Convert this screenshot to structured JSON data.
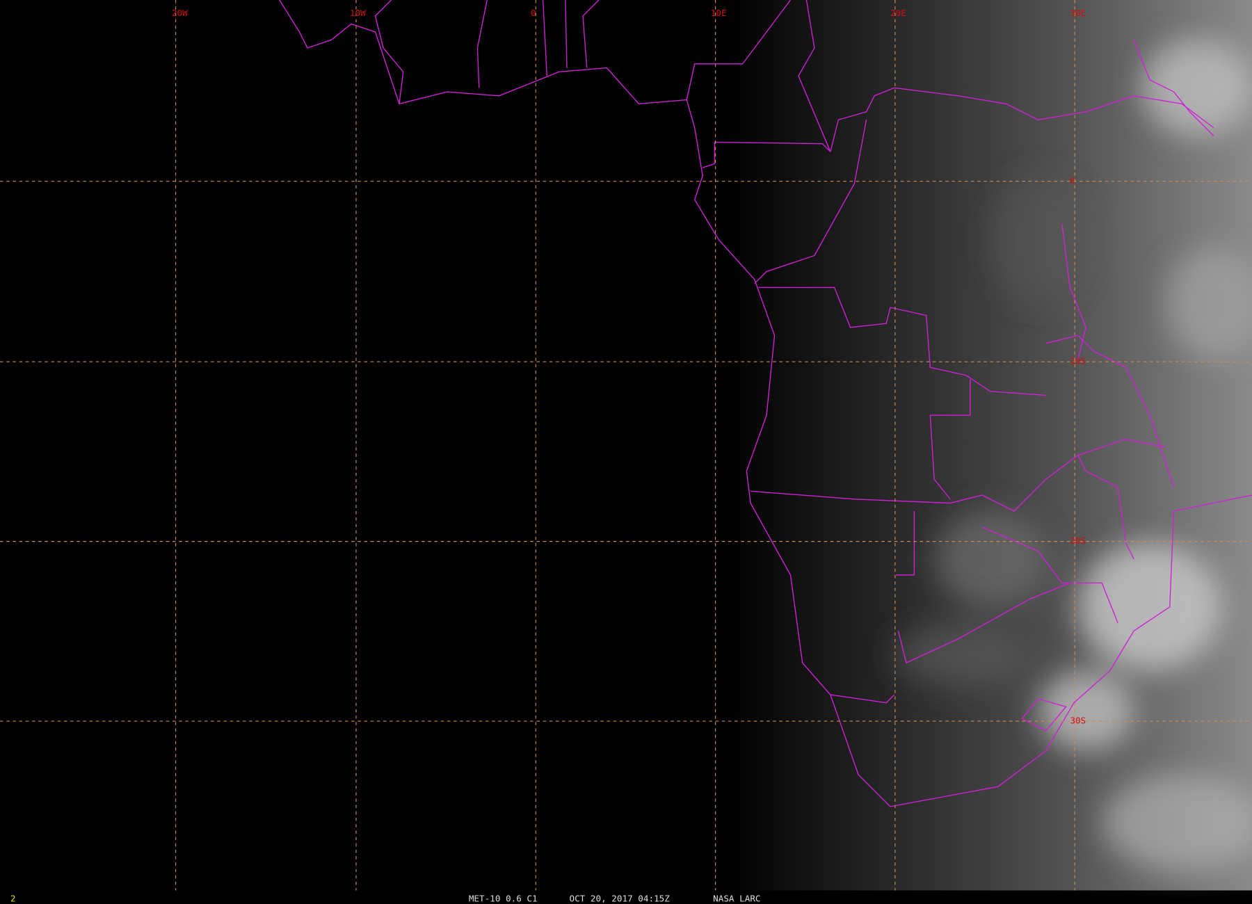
{
  "map": {
    "lon_labels": [
      "20W",
      "10W",
      "0",
      "10E",
      "20E",
      "30E"
    ],
    "lat_labels": [
      "0",
      "10S",
      "20S",
      "30S"
    ],
    "frame_number": "2",
    "footer": {
      "satellite": "MET-10 0.6 C1",
      "time": "OCT 20, 2017 04:15Z",
      "source": "NASA LARC"
    }
  }
}
